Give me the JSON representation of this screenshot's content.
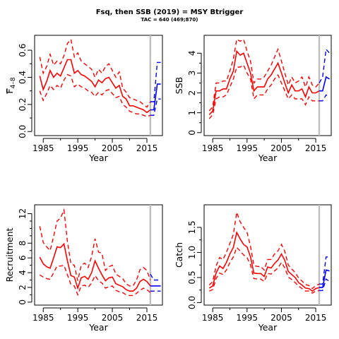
{
  "figure": {
    "title": "Fsq, then SSB (2019) = MSY Btrigger",
    "subtitle": "TAC = 640 (469;870)"
  },
  "colors": {
    "history": "#ff0000",
    "projection": "#0000ff",
    "marker": "#bebebe",
    "axis": "#000000"
  },
  "chart_data": [
    {
      "id": "fbar",
      "type": "line",
      "xlabel": "Year",
      "ylabel_main": "F",
      "ylabel_sub": "4–8",
      "xlim": [
        1982.5,
        2019.5
      ],
      "ylim": [
        -0.03,
        0.71
      ],
      "xticks": [
        1985,
        1995,
        2005,
        2015
      ],
      "yticks": [
        0.0,
        0.2,
        0.4,
        0.6
      ],
      "ytick_labels": [
        "0.0",
        "0.2",
        "0.4",
        "0.6"
      ],
      "vline": 2016,
      "history": {
        "years": [
          1984,
          1985,
          1986,
          1987,
          1988,
          1989,
          1990,
          1991,
          1992,
          1993,
          1994,
          1995,
          1996,
          1997,
          1998,
          1999,
          2000,
          2001,
          2002,
          2003,
          2004,
          2005,
          2006,
          2007,
          2008,
          2009,
          2010,
          2011,
          2012,
          2013,
          2014,
          2015,
          2016
        ],
        "median": [
          0.41,
          0.31,
          0.37,
          0.45,
          0.4,
          0.43,
          0.41,
          0.47,
          0.53,
          0.53,
          0.43,
          0.45,
          0.42,
          0.41,
          0.39,
          0.37,
          0.33,
          0.38,
          0.36,
          0.39,
          0.4,
          0.36,
          0.32,
          0.34,
          0.26,
          0.24,
          0.19,
          0.19,
          0.18,
          0.17,
          0.16,
          0.14,
          0.16
        ],
        "upper": [
          0.55,
          0.43,
          0.48,
          0.57,
          0.49,
          0.52,
          0.5,
          0.56,
          0.65,
          0.68,
          0.55,
          0.58,
          0.52,
          0.5,
          0.48,
          0.46,
          0.4,
          0.46,
          0.43,
          0.48,
          0.5,
          0.45,
          0.4,
          0.44,
          0.32,
          0.29,
          0.25,
          0.24,
          0.23,
          0.22,
          0.2,
          0.18,
          0.22
        ],
        "lower": [
          0.3,
          0.23,
          0.28,
          0.34,
          0.31,
          0.34,
          0.32,
          0.38,
          0.42,
          0.41,
          0.33,
          0.35,
          0.33,
          0.32,
          0.3,
          0.29,
          0.26,
          0.29,
          0.27,
          0.3,
          0.31,
          0.28,
          0.25,
          0.26,
          0.2,
          0.18,
          0.15,
          0.14,
          0.13,
          0.13,
          0.12,
          0.11,
          0.12
        ]
      },
      "projection": {
        "years": [
          2016,
          2017,
          2018,
          2019
        ],
        "median": [
          0.16,
          0.16,
          0.35,
          0.35
        ],
        "upper": [
          0.22,
          0.22,
          0.51,
          0.51
        ],
        "lower": [
          0.12,
          0.12,
          0.24,
          0.24
        ]
      }
    },
    {
      "id": "ssb",
      "type": "line",
      "xlabel": "Year",
      "ylabel_main": "SSB",
      "ylabel_sub": "",
      "xlim": [
        1982.5,
        2019.5
      ],
      "ylim": [
        -0.15,
        4.9
      ],
      "xticks": [
        1985,
        1995,
        2005,
        2015
      ],
      "yticks": [
        0,
        1,
        2,
        3,
        4
      ],
      "ytick_labels": [
        "0",
        "1",
        "2",
        "3",
        "4"
      ],
      "vline": 2016,
      "history": {
        "years": [
          1984,
          1985,
          1986,
          1987,
          1988,
          1989,
          1990,
          1991,
          1992,
          1993,
          1994,
          1995,
          1996,
          1997,
          1998,
          1999,
          2000,
          2001,
          2002,
          2003,
          2004,
          2005,
          2006,
          2007,
          2008,
          2009,
          2010,
          2011,
          2012,
          2013,
          2014,
          2015,
          2016
        ],
        "median": [
          0.9,
          1.1,
          2.1,
          2.1,
          2.2,
          2.2,
          2.7,
          3.1,
          4.1,
          3.9,
          4.0,
          3.5,
          3.0,
          2.1,
          2.3,
          2.3,
          2.3,
          2.7,
          2.9,
          3.2,
          3.5,
          3.0,
          2.5,
          2.0,
          2.4,
          2.1,
          2.1,
          2.2,
          1.8,
          2.3,
          2.0,
          2.0,
          2.1
        ],
        "upper": [
          1.1,
          1.3,
          2.5,
          2.5,
          2.6,
          2.6,
          3.1,
          3.7,
          4.7,
          4.6,
          4.7,
          4.1,
          3.6,
          2.5,
          2.7,
          2.7,
          2.8,
          3.1,
          3.4,
          3.8,
          4.2,
          3.6,
          3.0,
          2.4,
          2.8,
          2.5,
          2.6,
          2.8,
          2.3,
          2.8,
          2.4,
          2.3,
          2.5
        ],
        "lower": [
          0.7,
          0.9,
          1.7,
          1.8,
          1.8,
          1.9,
          2.3,
          2.7,
          3.3,
          3.3,
          3.4,
          3.0,
          2.7,
          1.7,
          1.9,
          1.9,
          1.9,
          2.2,
          2.4,
          2.7,
          2.9,
          2.5,
          2.1,
          1.7,
          1.9,
          1.7,
          1.7,
          1.7,
          1.4,
          1.8,
          1.6,
          1.6,
          1.6
        ]
      },
      "projection": {
        "years": [
          2016,
          2017,
          2018,
          2019
        ],
        "median": [
          2.1,
          2.1,
          2.8,
          2.7
        ],
        "upper": [
          2.5,
          2.8,
          4.2,
          4.0
        ],
        "lower": [
          1.6,
          1.6,
          1.9,
          1.8
        ]
      }
    },
    {
      "id": "recruitment",
      "type": "line",
      "xlabel": "Year",
      "ylabel_main": "Recruitment",
      "ylabel_sub": "",
      "xlim": [
        1982.5,
        2019.5
      ],
      "ylim": [
        -0.4,
        13.2
      ],
      "xticks": [
        1985,
        1995,
        2005,
        2015
      ],
      "yticks": [
        0,
        2,
        4,
        6,
        8,
        12
      ],
      "ytick_labels": [
        "0",
        "2",
        "4",
        "6",
        "8",
        "12"
      ],
      "vline": 2016,
      "history": {
        "years": [
          1984,
          1985,
          1986,
          1987,
          1988,
          1989,
          1990,
          1991,
          1992,
          1993,
          1994,
          1995,
          1996,
          1997,
          1998,
          1999,
          2000,
          2001,
          2002,
          2003,
          2004,
          2005,
          2006,
          2007,
          2008,
          2009,
          2010,
          2011,
          2012,
          2013,
          2014,
          2015,
          2016
        ],
        "median": [
          6.1,
          5.2,
          4.8,
          4.6,
          6.0,
          7.5,
          7.4,
          7.9,
          5.6,
          3.6,
          3.4,
          1.9,
          3.3,
          3.5,
          3.1,
          4.0,
          5.6,
          4.6,
          3.7,
          2.9,
          3.3,
          3.4,
          2.5,
          2.3,
          2.1,
          1.7,
          1.5,
          1.5,
          1.9,
          2.8,
          3.1,
          2.8,
          2.2
        ],
        "upper": [
          10.3,
          8.1,
          7.5,
          7.0,
          8.9,
          11.0,
          11.4,
          12.5,
          8.2,
          5.2,
          5.0,
          2.9,
          5.0,
          5.3,
          4.7,
          6.2,
          8.6,
          6.8,
          6.6,
          4.3,
          4.8,
          5.0,
          3.8,
          3.5,
          3.2,
          2.5,
          2.2,
          2.2,
          3.0,
          4.4,
          4.7,
          4.3,
          3.0
        ],
        "lower": [
          3.7,
          3.4,
          3.2,
          3.1,
          4.0,
          4.9,
          4.9,
          5.0,
          3.7,
          2.4,
          2.2,
          1.0,
          2.2,
          2.3,
          2.0,
          2.6,
          3.6,
          2.9,
          2.6,
          1.9,
          2.1,
          2.2,
          1.6,
          1.4,
          1.3,
          1.0,
          0.9,
          0.9,
          1.2,
          1.6,
          1.9,
          1.7,
          1.3
        ]
      },
      "projection": {
        "years": [
          2016,
          2017,
          2018,
          2019
        ],
        "median": [
          2.2,
          2.2,
          2.2,
          2.2
        ],
        "upper": [
          3.8,
          3.0,
          3.0,
          3.0
        ],
        "lower": [
          1.5,
          1.5,
          1.5,
          1.5
        ]
      }
    },
    {
      "id": "catch",
      "type": "line",
      "xlabel": "Year",
      "ylabel_main": "Catch",
      "ylabel_sub": "",
      "xlim": [
        1982.5,
        2019.5
      ],
      "ylim": [
        -0.05,
        1.95
      ],
      "xticks": [
        1985,
        1995,
        2005,
        2015
      ],
      "yticks": [
        0.0,
        0.5,
        1.0,
        1.5
      ],
      "ytick_labels": [
        "0.0",
        "0.5",
        "1.0",
        "1.5"
      ],
      "vline": 2016,
      "history": {
        "years": [
          1984,
          1985,
          1986,
          1987,
          1988,
          1989,
          1990,
          1991,
          1992,
          1993,
          1994,
          1995,
          1996,
          1997,
          1998,
          1999,
          2000,
          2001,
          2002,
          2003,
          2004,
          2005,
          2006,
          2007,
          2008,
          2009,
          2010,
          2011,
          2012,
          2013,
          2014,
          2015,
          2016
        ],
        "median": [
          0.29,
          0.33,
          0.59,
          0.73,
          0.68,
          0.8,
          0.97,
          1.1,
          1.4,
          1.27,
          1.16,
          1.11,
          0.91,
          0.59,
          0.58,
          0.58,
          0.52,
          0.71,
          0.69,
          0.78,
          0.85,
          0.97,
          0.84,
          0.62,
          0.56,
          0.5,
          0.4,
          0.35,
          0.29,
          0.28,
          0.23,
          0.28,
          0.3
        ],
        "upper": [
          0.35,
          0.42,
          0.73,
          0.9,
          0.86,
          1.0,
          1.18,
          1.36,
          1.8,
          1.61,
          1.5,
          1.4,
          1.12,
          0.74,
          0.72,
          0.72,
          0.65,
          0.86,
          0.86,
          0.97,
          1.03,
          1.16,
          1.02,
          0.75,
          0.67,
          0.6,
          0.49,
          0.43,
          0.36,
          0.34,
          0.28,
          0.34,
          0.37
        ],
        "lower": [
          0.23,
          0.26,
          0.48,
          0.59,
          0.56,
          0.65,
          0.8,
          0.91,
          1.1,
          1.03,
          0.95,
          0.9,
          0.75,
          0.48,
          0.47,
          0.47,
          0.42,
          0.58,
          0.57,
          0.63,
          0.69,
          0.8,
          0.69,
          0.51,
          0.46,
          0.4,
          0.33,
          0.28,
          0.23,
          0.23,
          0.19,
          0.23,
          0.24
        ]
      },
      "projection": {
        "years": [
          2016,
          2017,
          2018,
          2019
        ],
        "median": [
          0.3,
          0.3,
          0.65,
          0.63
        ],
        "upper": [
          0.37,
          0.37,
          0.91,
          0.91
        ],
        "lower": [
          0.24,
          0.24,
          0.47,
          0.42
        ]
      }
    }
  ]
}
